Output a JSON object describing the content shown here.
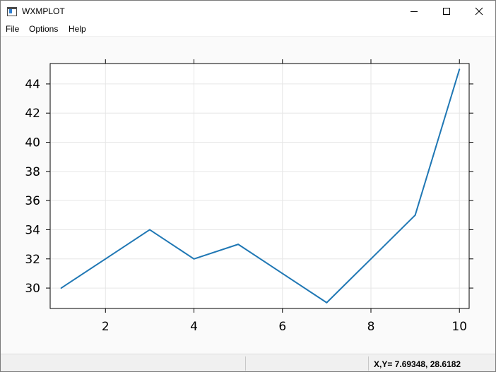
{
  "window": {
    "title": "WXMPLOT",
    "icon": "app-window-icon",
    "controls": [
      "minimize-icon",
      "maximize-icon",
      "close-icon"
    ]
  },
  "menubar": {
    "items": [
      {
        "label": "File"
      },
      {
        "label": "Options"
      },
      {
        "label": "Help"
      }
    ]
  },
  "statusbar": {
    "coordinates": "X,Y=  7.69348, 28.6182"
  },
  "colors": {
    "line": "#1f77b4",
    "plot_background": "#ffffff",
    "canvas_background": "#fafafa",
    "grid": "#e6e6e6"
  },
  "chart_data": {
    "type": "line",
    "title": "",
    "xlabel": "",
    "ylabel": "",
    "x": [
      1,
      2,
      3,
      4,
      5,
      6,
      7,
      8,
      9,
      10
    ],
    "series": [
      {
        "values": [
          30,
          32,
          34,
          32,
          33,
          31,
          29,
          32,
          35,
          45
        ]
      }
    ],
    "xlim": [
      0.75,
      10.22
    ],
    "ylim": [
      28.6,
      45.4
    ],
    "xticks": [
      2,
      4,
      6,
      8,
      10
    ],
    "yticks": [
      30,
      32,
      34,
      36,
      38,
      40,
      42,
      44
    ],
    "grid": true,
    "legend": "none"
  }
}
